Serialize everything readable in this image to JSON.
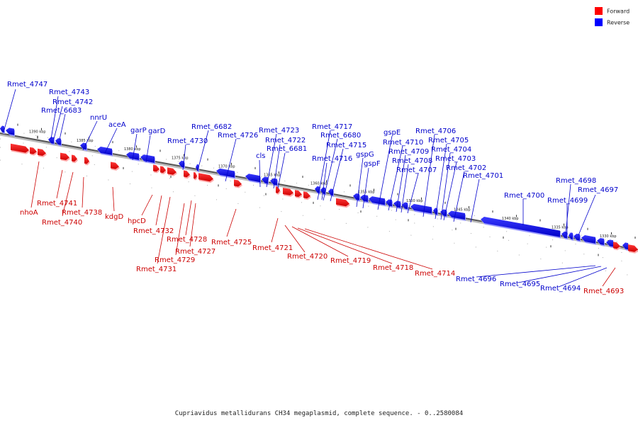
{
  "legend": {
    "items": [
      {
        "label": "Forward",
        "color": "#ff0000"
      },
      {
        "label": "Reverse",
        "color": "#0000ff"
      }
    ]
  },
  "axis": {
    "ticks": [
      "1390 kbp",
      "1385 kbp",
      "1380 kbp",
      "1375 kbp",
      "1370 kbp",
      "1365 kbp",
      "1360 kbp",
      "1355 kbp",
      "1350 kbp",
      "1345 kbp",
      "1340 kbp",
      "1335 kbp",
      "1330 kbp"
    ]
  },
  "reverse_labels": [
    "Rmet_4747",
    "Rmet_4743",
    "Rmet_4742",
    "Rmet_6683",
    "nnrU",
    "aceA",
    "garP",
    "garD",
    "Rmet_4730",
    "Rmet_6682",
    "Rmet_4726",
    "Rmet_4723",
    "cls",
    "Rmet_4722",
    "Rmet_6681",
    "Rmet_4717",
    "Rmet_6680",
    "Rmet_4715",
    "gspG",
    "Rmet_4716",
    "gspF",
    "gspE",
    "Rmet_4710",
    "Rmet_4709",
    "Rmet_4708",
    "Rmet_4707",
    "Rmet_4706",
    "Rmet_4705",
    "Rmet_4704",
    "Rmet_4703",
    "Rmet_4702",
    "Rmet_4701",
    "Rmet_4700",
    "Rmet_4698",
    "Rmet_4697",
    "Rmet_4699",
    "Rmet_4696",
    "Rmet_4695",
    "Rmet_4694"
  ],
  "forward_labels": [
    "nhoA",
    "Rmet_4741",
    "Rmet_4740",
    "Rmet_4738",
    "kdgD",
    "hpcD",
    "Rmet_4732",
    "Rmet_4728",
    "Rmet_4729",
    "Rmet_4727",
    "Rmet_4731",
    "Rmet_4725",
    "Rmet_4721",
    "Rmet_4720",
    "Rmet_4719",
    "Rmet_4718",
    "Rmet_4714",
    "Rmet_4693"
  ],
  "caption": "Cupriavidus metallidurans CH34 megaplasmid, complete sequence. - 0..2580084"
}
